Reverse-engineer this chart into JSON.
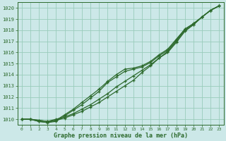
{
  "x": [
    0,
    1,
    2,
    3,
    4,
    5,
    6,
    7,
    8,
    9,
    10,
    11,
    12,
    13,
    14,
    15,
    16,
    17,
    18,
    19,
    20,
    21,
    22,
    23
  ],
  "line1": [
    1010.0,
    1010.0,
    1009.9,
    1009.8,
    1010.0,
    1010.2,
    1010.5,
    1010.9,
    1011.3,
    1011.8,
    1012.3,
    1012.9,
    1013.4,
    1013.9,
    1014.4,
    1014.9,
    1015.5,
    1016.0,
    1016.9,
    1017.9,
    1018.5,
    1019.2,
    1019.8,
    1020.2
  ],
  "line2": [
    1010.0,
    1010.0,
    1009.9,
    1009.8,
    1009.9,
    1010.1,
    1010.4,
    1010.7,
    1011.1,
    1011.5,
    1012.0,
    1012.5,
    1013.0,
    1013.5,
    1014.2,
    1014.8,
    1015.5,
    1016.1,
    1017.0,
    1018.0,
    1018.5,
    1019.2,
    1019.8,
    1020.2
  ],
  "line3": [
    1010.0,
    1010.0,
    1009.8,
    1009.7,
    1009.8,
    1010.3,
    1010.8,
    1011.3,
    1011.9,
    1012.5,
    1013.3,
    1013.8,
    1014.3,
    1014.5,
    1014.7,
    1015.1,
    1015.7,
    1016.2,
    1017.1,
    1018.1,
    1018.6,
    1019.2,
    1019.8,
    1020.2
  ],
  "line4": [
    1010.0,
    1010.0,
    1009.8,
    1009.7,
    1009.9,
    1010.4,
    1010.9,
    1011.5,
    1012.1,
    1012.7,
    1013.4,
    1014.0,
    1014.5,
    1014.6,
    1014.8,
    1015.2,
    1015.8,
    1016.3,
    1017.2,
    1018.1,
    1018.6,
    1019.2,
    1019.8,
    1020.2
  ],
  "line_color": "#2d6a2d",
  "bg_color": "#cce8e8",
  "grid_color": "#99ccbb",
  "xlabel": "Graphe pression niveau de la mer (hPa)",
  "ylim": [
    1009.5,
    1020.5
  ],
  "yticks": [
    1010,
    1011,
    1012,
    1013,
    1014,
    1015,
    1016,
    1017,
    1018,
    1019,
    1020
  ],
  "xticks": [
    0,
    1,
    2,
    3,
    4,
    5,
    6,
    7,
    8,
    9,
    10,
    11,
    12,
    13,
    14,
    15,
    16,
    17,
    18,
    19,
    20,
    21,
    22,
    23
  ]
}
